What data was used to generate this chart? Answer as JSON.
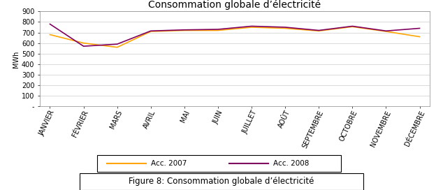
{
  "title": "Consommation globale d’électricité",
  "ylabel": "MWh",
  "months": [
    "JANVIER",
    "FÉVRIER",
    "MARS",
    "AVRIL",
    "MAI",
    "JUIN",
    "JUILLET",
    "AOÛT",
    "SEPTEMBRE",
    "OCTOBRE",
    "NOVEMBRE",
    "DÉCEMBRE"
  ],
  "series_2007": [
    680,
    600,
    560,
    710,
    720,
    720,
    750,
    740,
    715,
    755,
    710,
    660
  ],
  "series_2008": [
    780,
    570,
    590,
    715,
    725,
    730,
    760,
    750,
    720,
    760,
    715,
    740
  ],
  "color_2007": "#FFA500",
  "color_2008": "#800060",
  "legend_2007": "Acc. 2007",
  "legend_2008": "Acc. 2008",
  "ylim": [
    0,
    900
  ],
  "yticks": [
    0,
    100,
    200,
    300,
    400,
    500,
    600,
    700,
    800,
    900
  ],
  "ytick_labels": [
    "-",
    "100",
    "200",
    "300",
    "400",
    "500",
    "600",
    "700",
    "800",
    "900"
  ],
  "figure_caption": "Figure 8: Consommation globale d’électricité",
  "background_color": "#ffffff",
  "grid_color": "#cccccc",
  "title_fontsize": 10,
  "axis_fontsize": 7,
  "legend_fontsize": 7.5
}
